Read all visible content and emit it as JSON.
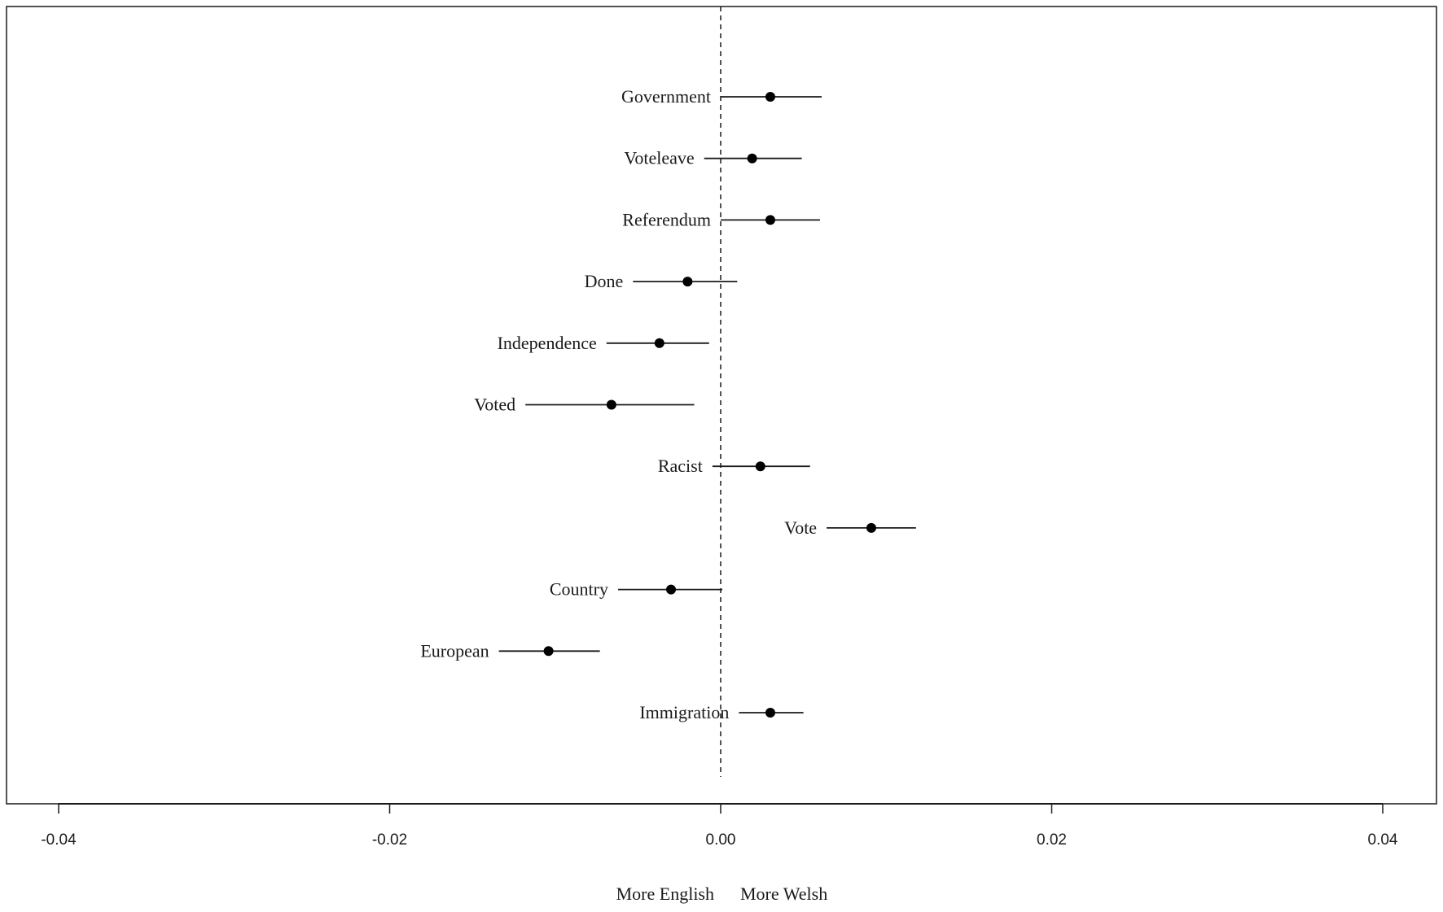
{
  "chart_data": {
    "type": "scatter",
    "subtype": "coefficient-plot-with-intervals",
    "title": "",
    "xlim": [
      -0.04,
      0.04
    ],
    "xticks": [
      -0.04,
      -0.02,
      0.0,
      0.02,
      0.04
    ],
    "xtick_labels": [
      "-0.04",
      "-0.02",
      "0.00",
      "0.02",
      "0.04"
    ],
    "xlabel_left": "More English",
    "xlabel_right": "More Welsh",
    "reference_line": 0,
    "reference_line_style": "dashed",
    "grid": false,
    "point_color": "#000000",
    "line_color": "#1a1a1a",
    "points": [
      {
        "label": "Government",
        "estimate": 0.003,
        "lower": 0.0,
        "upper": 0.0061
      },
      {
        "label": "Voteleave",
        "estimate": 0.0019,
        "lower": -0.001,
        "upper": 0.0049
      },
      {
        "label": "Referendum",
        "estimate": 0.003,
        "lower": 0.0,
        "upper": 0.006
      },
      {
        "label": "Done",
        "estimate": -0.002,
        "lower": -0.0053,
        "upper": 0.001
      },
      {
        "label": "Independence",
        "estimate": -0.0037,
        "lower": -0.0069,
        "upper": -0.0007
      },
      {
        "label": "Voted",
        "estimate": -0.0066,
        "lower": -0.0118,
        "upper": -0.0016
      },
      {
        "label": "Racist",
        "estimate": 0.0024,
        "lower": -0.0005,
        "upper": 0.0054
      },
      {
        "label": "Vote",
        "estimate": 0.0091,
        "lower": 0.0064,
        "upper": 0.0118
      },
      {
        "label": "Country",
        "estimate": -0.003,
        "lower": -0.0062,
        "upper": 0.0001
      },
      {
        "label": "European",
        "estimate": -0.0104,
        "lower": -0.0134,
        "upper": -0.0073
      },
      {
        "label": "Immigration",
        "estimate": 0.003,
        "lower": 0.0011,
        "upper": 0.005
      }
    ]
  }
}
